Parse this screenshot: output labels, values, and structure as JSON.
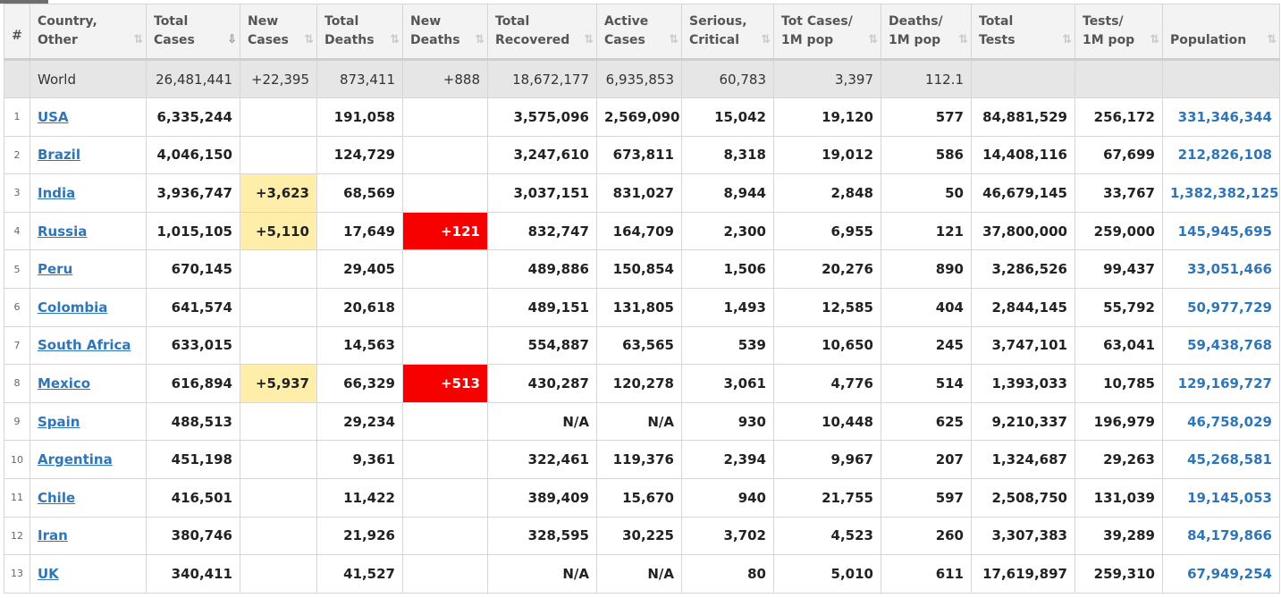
{
  "headers": {
    "rank": "#",
    "country": [
      "Country,",
      "Other"
    ],
    "total_cases": [
      "Total",
      "Cases"
    ],
    "new_cases": [
      "New",
      "Cases"
    ],
    "total_deaths": [
      "Total",
      "Deaths"
    ],
    "new_deaths": [
      "New",
      "Deaths"
    ],
    "total_recovered": [
      "Total",
      "Recovered"
    ],
    "active_cases": [
      "Active",
      "Cases"
    ],
    "serious": [
      "Serious,",
      "Critical"
    ],
    "cases_per_1m": [
      "Tot Cases/",
      "1M pop"
    ],
    "deaths_per_1m": [
      "Deaths/",
      "1M pop"
    ],
    "total_tests": [
      "Total",
      "Tests"
    ],
    "tests_per_1m": [
      "Tests/",
      "1M pop"
    ],
    "population": [
      "Population",
      ""
    ]
  },
  "sort_icon": "⇅",
  "active_sort_icon": "⇩",
  "colors": {
    "link": "#2f76b8",
    "new_cases_highlight": "#ffeeaa",
    "new_deaths_highlight": "#f70000"
  },
  "world": {
    "country": "World",
    "total_cases": "26,481,441",
    "new_cases": "+22,395",
    "total_deaths": "873,411",
    "new_deaths": "+888",
    "total_recovered": "18,672,177",
    "active_cases": "6,935,853",
    "serious": "60,783",
    "cases_per_1m": "3,397",
    "deaths_per_1m": "112.1",
    "total_tests": "",
    "tests_per_1m": "",
    "population": ""
  },
  "rows": [
    {
      "rank": "1",
      "country": "USA",
      "total_cases": "6,335,244",
      "new_cases": "",
      "total_deaths": "191,058",
      "new_deaths": "",
      "total_recovered": "3,575,096",
      "active_cases": "2,569,090",
      "serious": "15,042",
      "cases_per_1m": "19,120",
      "deaths_per_1m": "577",
      "total_tests": "84,881,529",
      "tests_per_1m": "256,172",
      "population": "331,346,344"
    },
    {
      "rank": "2",
      "country": "Brazil",
      "total_cases": "4,046,150",
      "new_cases": "",
      "total_deaths": "124,729",
      "new_deaths": "",
      "total_recovered": "3,247,610",
      "active_cases": "673,811",
      "serious": "8,318",
      "cases_per_1m": "19,012",
      "deaths_per_1m": "586",
      "total_tests": "14,408,116",
      "tests_per_1m": "67,699",
      "population": "212,826,108"
    },
    {
      "rank": "3",
      "country": "India",
      "total_cases": "3,936,747",
      "new_cases": "+3,623",
      "total_deaths": "68,569",
      "new_deaths": "",
      "total_recovered": "3,037,151",
      "active_cases": "831,027",
      "serious": "8,944",
      "cases_per_1m": "2,848",
      "deaths_per_1m": "50",
      "total_tests": "46,679,145",
      "tests_per_1m": "33,767",
      "population": "1,382,382,125"
    },
    {
      "rank": "4",
      "country": "Russia",
      "total_cases": "1,015,105",
      "new_cases": "+5,110",
      "total_deaths": "17,649",
      "new_deaths": "+121",
      "total_recovered": "832,747",
      "active_cases": "164,709",
      "serious": "2,300",
      "cases_per_1m": "6,955",
      "deaths_per_1m": "121",
      "total_tests": "37,800,000",
      "tests_per_1m": "259,000",
      "population": "145,945,695"
    },
    {
      "rank": "5",
      "country": "Peru",
      "total_cases": "670,145",
      "new_cases": "",
      "total_deaths": "29,405",
      "new_deaths": "",
      "total_recovered": "489,886",
      "active_cases": "150,854",
      "serious": "1,506",
      "cases_per_1m": "20,276",
      "deaths_per_1m": "890",
      "total_tests": "3,286,526",
      "tests_per_1m": "99,437",
      "population": "33,051,466"
    },
    {
      "rank": "6",
      "country": "Colombia",
      "total_cases": "641,574",
      "new_cases": "",
      "total_deaths": "20,618",
      "new_deaths": "",
      "total_recovered": "489,151",
      "active_cases": "131,805",
      "serious": "1,493",
      "cases_per_1m": "12,585",
      "deaths_per_1m": "404",
      "total_tests": "2,844,145",
      "tests_per_1m": "55,792",
      "population": "50,977,729"
    },
    {
      "rank": "7",
      "country": "South Africa",
      "total_cases": "633,015",
      "new_cases": "",
      "total_deaths": "14,563",
      "new_deaths": "",
      "total_recovered": "554,887",
      "active_cases": "63,565",
      "serious": "539",
      "cases_per_1m": "10,650",
      "deaths_per_1m": "245",
      "total_tests": "3,747,101",
      "tests_per_1m": "63,041",
      "population": "59,438,768"
    },
    {
      "rank": "8",
      "country": "Mexico",
      "total_cases": "616,894",
      "new_cases": "+5,937",
      "total_deaths": "66,329",
      "new_deaths": "+513",
      "total_recovered": "430,287",
      "active_cases": "120,278",
      "serious": "3,061",
      "cases_per_1m": "4,776",
      "deaths_per_1m": "514",
      "total_tests": "1,393,033",
      "tests_per_1m": "10,785",
      "population": "129,169,727"
    },
    {
      "rank": "9",
      "country": "Spain",
      "total_cases": "488,513",
      "new_cases": "",
      "total_deaths": "29,234",
      "new_deaths": "",
      "total_recovered": "N/A",
      "active_cases": "N/A",
      "serious": "930",
      "cases_per_1m": "10,448",
      "deaths_per_1m": "625",
      "total_tests": "9,210,337",
      "tests_per_1m": "196,979",
      "population": "46,758,029"
    },
    {
      "rank": "10",
      "country": "Argentina",
      "total_cases": "451,198",
      "new_cases": "",
      "total_deaths": "9,361",
      "new_deaths": "",
      "total_recovered": "322,461",
      "active_cases": "119,376",
      "serious": "2,394",
      "cases_per_1m": "9,967",
      "deaths_per_1m": "207",
      "total_tests": "1,324,687",
      "tests_per_1m": "29,263",
      "population": "45,268,581"
    },
    {
      "rank": "11",
      "country": "Chile",
      "total_cases": "416,501",
      "new_cases": "",
      "total_deaths": "11,422",
      "new_deaths": "",
      "total_recovered": "389,409",
      "active_cases": "15,670",
      "serious": "940",
      "cases_per_1m": "21,755",
      "deaths_per_1m": "597",
      "total_tests": "2,508,750",
      "tests_per_1m": "131,039",
      "population": "19,145,053"
    },
    {
      "rank": "12",
      "country": "Iran",
      "total_cases": "380,746",
      "new_cases": "",
      "total_deaths": "21,926",
      "new_deaths": "",
      "total_recovered": "328,595",
      "active_cases": "30,225",
      "serious": "3,702",
      "cases_per_1m": "4,523",
      "deaths_per_1m": "260",
      "total_tests": "3,307,383",
      "tests_per_1m": "39,289",
      "population": "84,179,866"
    },
    {
      "rank": "13",
      "country": "UK",
      "total_cases": "340,411",
      "new_cases": "",
      "total_deaths": "41,527",
      "new_deaths": "",
      "total_recovered": "N/A",
      "active_cases": "N/A",
      "serious": "80",
      "cases_per_1m": "5,010",
      "deaths_per_1m": "611",
      "total_tests": "17,619,897",
      "tests_per_1m": "259,310",
      "population": "67,949,254"
    }
  ]
}
